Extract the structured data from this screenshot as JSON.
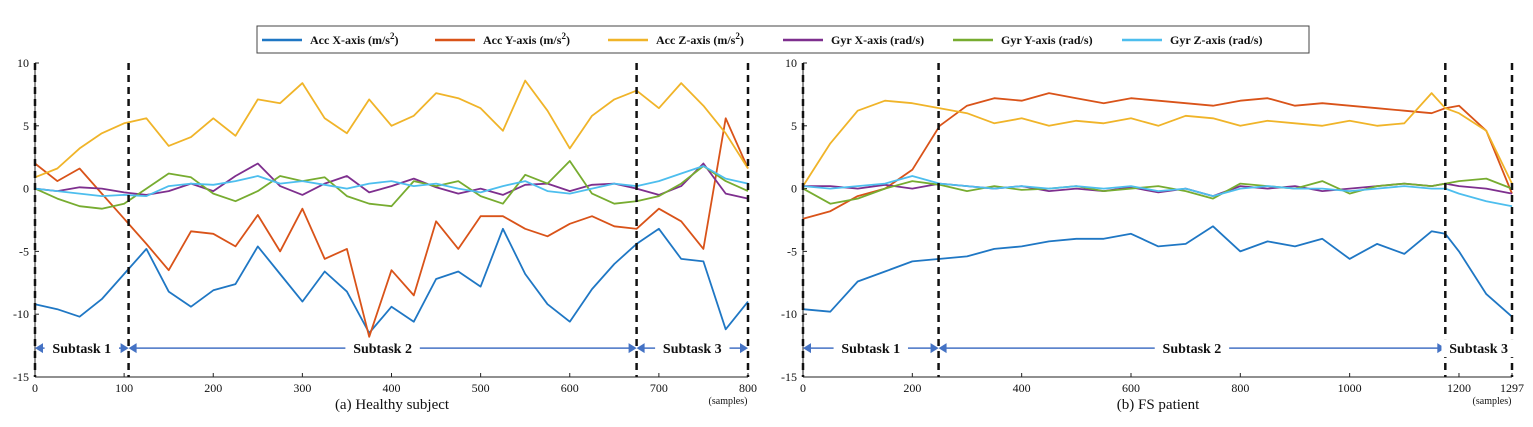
{
  "legend": [
    {
      "label": "Acc X-axis (m/s",
      "sup": "2",
      "close": ")",
      "color": "#1f77c4"
    },
    {
      "label": "Acc Y-axis (m/s",
      "sup": "2",
      "close": ")",
      "color": "#d95319"
    },
    {
      "label": "Acc Z-axis (m/s",
      "sup": "2",
      "close": ")",
      "color": "#f0b429"
    },
    {
      "label": "Gyr X-axis (rad/s)",
      "sup": "",
      "close": "",
      "color": "#7e2f8e"
    },
    {
      "label": "Gyr Y-axis (rad/s)",
      "sup": "",
      "close": "",
      "color": "#77ac30"
    },
    {
      "label": "Gyr Z-axis (rad/s)",
      "sup": "",
      "close": "",
      "color": "#4dbeee"
    }
  ],
  "chart_data": [
    {
      "type": "line",
      "caption": "(a) Healthy subject",
      "xlabel": "(samples)",
      "xlim": [
        0,
        800
      ],
      "ylim": [
        -15,
        10
      ],
      "xticks": [
        0,
        100,
        200,
        300,
        400,
        500,
        600,
        700,
        800
      ],
      "yticks": [
        10,
        5,
        0,
        -5,
        -10,
        -15
      ],
      "boundaries": [
        0,
        105,
        675,
        800
      ],
      "subtasks": [
        {
          "label": "Subtask 1",
          "from": 0,
          "to": 105
        },
        {
          "label": "Subtask 2",
          "from": 105,
          "to": 675
        },
        {
          "label": "Subtask 3",
          "from": 675,
          "to": 800
        }
      ],
      "series": [
        {
          "name": "Acc X-axis",
          "color": "#1f77c4",
          "x": [
            0,
            25,
            50,
            75,
            100,
            125,
            150,
            175,
            200,
            225,
            250,
            275,
            300,
            325,
            350,
            375,
            400,
            425,
            450,
            475,
            500,
            525,
            550,
            575,
            600,
            625,
            650,
            675,
            700,
            725,
            750,
            775,
            800
          ],
          "y": [
            -9.2,
            -9.6,
            -10.2,
            -8.8,
            -6.8,
            -4.8,
            -8.2,
            -9.4,
            -8.1,
            -7.6,
            -4.6,
            -6.8,
            -9.0,
            -6.6,
            -8.2,
            -11.5,
            -9.4,
            -10.6,
            -7.2,
            -6.6,
            -7.8,
            -3.2,
            -6.8,
            -9.2,
            -10.6,
            -8.0,
            -6.0,
            -4.4,
            -3.2,
            -5.6,
            -5.8,
            -11.2,
            -9.0
          ]
        },
        {
          "name": "Acc Y-axis",
          "color": "#d95319",
          "x": [
            0,
            25,
            50,
            75,
            100,
            125,
            150,
            175,
            200,
            225,
            250,
            275,
            300,
            325,
            350,
            375,
            400,
            425,
            450,
            475,
            500,
            525,
            550,
            575,
            600,
            625,
            650,
            675,
            700,
            725,
            750,
            775,
            800
          ],
          "y": [
            2.0,
            0.6,
            1.6,
            -0.4,
            -2.4,
            -4.4,
            -6.5,
            -3.4,
            -3.6,
            -4.6,
            -2.1,
            -5.0,
            -1.6,
            -5.6,
            -4.8,
            -11.8,
            -6.5,
            -8.5,
            -2.6,
            -4.8,
            -2.2,
            -2.2,
            -3.2,
            -3.8,
            -2.8,
            -2.2,
            -3.0,
            -3.2,
            -1.6,
            -2.6,
            -4.8,
            5.6,
            1.6
          ]
        },
        {
          "name": "Acc Z-axis",
          "color": "#f0b429",
          "x": [
            0,
            25,
            50,
            75,
            100,
            125,
            150,
            175,
            200,
            225,
            250,
            275,
            300,
            325,
            350,
            375,
            400,
            425,
            450,
            475,
            500,
            525,
            550,
            575,
            600,
            625,
            650,
            675,
            700,
            725,
            750,
            775,
            800
          ],
          "y": [
            0.9,
            1.6,
            3.2,
            4.4,
            5.2,
            5.6,
            3.4,
            4.1,
            5.6,
            4.2,
            7.1,
            6.8,
            8.4,
            5.6,
            4.4,
            7.1,
            5.0,
            5.8,
            7.6,
            7.2,
            6.4,
            4.6,
            8.6,
            6.2,
            3.2,
            5.8,
            7.1,
            7.8,
            6.4,
            8.4,
            6.6,
            4.4,
            1.6
          ]
        },
        {
          "name": "Gyr X-axis",
          "color": "#7e2f8e",
          "x": [
            0,
            25,
            50,
            75,
            100,
            125,
            150,
            175,
            200,
            225,
            250,
            275,
            300,
            325,
            350,
            375,
            400,
            425,
            450,
            475,
            500,
            525,
            550,
            575,
            600,
            625,
            650,
            675,
            700,
            725,
            750,
            775,
            800
          ],
          "y": [
            0.0,
            -0.2,
            0.1,
            0.0,
            -0.3,
            -0.5,
            -0.2,
            0.4,
            -0.2,
            1.0,
            2.0,
            0.2,
            -0.5,
            0.4,
            1.0,
            -0.3,
            0.2,
            0.8,
            0.1,
            -0.4,
            0.0,
            -0.5,
            0.3,
            0.4,
            -0.2,
            0.3,
            0.4,
            0.0,
            -0.5,
            0.2,
            2.0,
            -0.4,
            -0.8
          ]
        },
        {
          "name": "Gyr Y-axis",
          "color": "#77ac30",
          "x": [
            0,
            25,
            50,
            75,
            100,
            125,
            150,
            175,
            200,
            225,
            250,
            275,
            300,
            325,
            350,
            375,
            400,
            425,
            450,
            475,
            500,
            525,
            550,
            575,
            600,
            625,
            650,
            675,
            700,
            725,
            750,
            775,
            800
          ],
          "y": [
            0.0,
            -0.8,
            -1.4,
            -1.6,
            -1.2,
            0.0,
            1.2,
            0.9,
            -0.4,
            -1.0,
            -0.2,
            1.0,
            0.6,
            0.9,
            -0.6,
            -1.2,
            -1.4,
            0.6,
            0.2,
            0.6,
            -0.6,
            -1.2,
            1.1,
            0.4,
            2.2,
            -0.4,
            -1.2,
            -1.0,
            -0.6,
            0.4,
            1.8,
            0.6,
            -0.2
          ]
        },
        {
          "name": "Gyr Z-axis",
          "color": "#4dbeee",
          "x": [
            0,
            25,
            50,
            75,
            100,
            125,
            150,
            175,
            200,
            225,
            250,
            275,
            300,
            325,
            350,
            375,
            400,
            425,
            450,
            475,
            500,
            525,
            550,
            575,
            600,
            625,
            650,
            675,
            700,
            725,
            750,
            775,
            800
          ],
          "y": [
            0.0,
            -0.2,
            -0.4,
            -0.6,
            -0.5,
            -0.6,
            0.2,
            0.4,
            0.3,
            0.6,
            1.0,
            0.4,
            0.6,
            0.3,
            0.0,
            0.4,
            0.6,
            0.2,
            0.4,
            0.0,
            -0.3,
            0.2,
            0.6,
            -0.2,
            -0.4,
            0.0,
            0.4,
            0.2,
            0.6,
            1.2,
            1.8,
            0.8,
            0.4
          ]
        }
      ]
    },
    {
      "type": "line",
      "caption": "(b) FS patient",
      "xlabel": "(samples)",
      "xlim": [
        0,
        1297
      ],
      "ylim": [
        -15,
        10
      ],
      "xticks": [
        0,
        200,
        400,
        600,
        800,
        1000,
        1200,
        1297
      ],
      "yticks": [
        10,
        5,
        0,
        -5,
        -10,
        -15
      ],
      "boundaries": [
        0,
        248,
        1175,
        1297
      ],
      "subtasks": [
        {
          "label": "Subtask 1",
          "from": 0,
          "to": 248
        },
        {
          "label": "Subtask 2",
          "from": 248,
          "to": 1175
        },
        {
          "label": "Subtask 3",
          "from": 1175,
          "to": 1297
        }
      ],
      "series": [
        {
          "name": "Acc X-axis",
          "color": "#1f77c4",
          "x": [
            0,
            50,
            100,
            150,
            200,
            250,
            300,
            350,
            400,
            450,
            500,
            550,
            600,
            650,
            700,
            750,
            800,
            850,
            900,
            950,
            1000,
            1050,
            1100,
            1150,
            1175,
            1200,
            1250,
            1297
          ],
          "y": [
            -9.6,
            -9.8,
            -7.4,
            -6.6,
            -5.8,
            -5.6,
            -5.4,
            -4.8,
            -4.6,
            -4.2,
            -4.0,
            -4.0,
            -3.6,
            -4.6,
            -4.4,
            -3.0,
            -5.0,
            -4.2,
            -4.6,
            -4.0,
            -5.6,
            -4.4,
            -5.2,
            -3.4,
            -3.6,
            -5.0,
            -8.4,
            -10.2
          ]
        },
        {
          "name": "Acc Y-axis",
          "color": "#d95319",
          "x": [
            0,
            50,
            100,
            150,
            200,
            250,
            300,
            350,
            400,
            450,
            500,
            550,
            600,
            650,
            700,
            750,
            800,
            850,
            900,
            950,
            1000,
            1050,
            1100,
            1150,
            1175,
            1200,
            1250,
            1297
          ],
          "y": [
            -2.4,
            -1.8,
            -0.6,
            0.0,
            1.5,
            5.0,
            6.6,
            7.2,
            7.0,
            7.6,
            7.2,
            6.8,
            7.2,
            7.0,
            6.8,
            6.6,
            7.0,
            7.2,
            6.6,
            6.8,
            6.6,
            6.4,
            6.2,
            6.0,
            6.4,
            6.6,
            4.6,
            -0.4
          ]
        },
        {
          "name": "Acc Z-axis",
          "color": "#f0b429",
          "x": [
            0,
            50,
            100,
            150,
            200,
            250,
            300,
            350,
            400,
            450,
            500,
            550,
            600,
            650,
            700,
            750,
            800,
            850,
            900,
            950,
            1000,
            1050,
            1100,
            1150,
            1175,
            1200,
            1250,
            1297
          ],
          "y": [
            0.2,
            3.6,
            6.2,
            7.0,
            6.8,
            6.4,
            6.0,
            5.2,
            5.6,
            5.0,
            5.4,
            5.2,
            5.6,
            5.0,
            5.8,
            5.6,
            5.0,
            5.4,
            5.2,
            5.0,
            5.4,
            5.0,
            5.2,
            7.6,
            6.4,
            6.0,
            4.6,
            0.4
          ]
        },
        {
          "name": "Gyr X-axis",
          "color": "#7e2f8e",
          "x": [
            0,
            50,
            100,
            150,
            200,
            250,
            300,
            350,
            400,
            450,
            500,
            550,
            600,
            650,
            700,
            750,
            800,
            850,
            900,
            950,
            1000,
            1050,
            1100,
            1150,
            1175,
            1200,
            1250,
            1297
          ],
          "y": [
            0.2,
            0.2,
            0.0,
            0.3,
            0.0,
            0.4,
            0.2,
            0.0,
            0.2,
            -0.2,
            0.0,
            -0.2,
            0.1,
            -0.3,
            0.0,
            -0.6,
            0.2,
            0.0,
            0.2,
            -0.2,
            0.0,
            0.2,
            0.4,
            0.2,
            0.4,
            0.2,
            0.0,
            -0.4
          ]
        },
        {
          "name": "Gyr Y-axis",
          "color": "#77ac30",
          "x": [
            0,
            50,
            100,
            150,
            200,
            250,
            300,
            350,
            400,
            450,
            500,
            550,
            600,
            650,
            700,
            750,
            800,
            850,
            900,
            950,
            1000,
            1050,
            1100,
            1150,
            1175,
            1200,
            1250,
            1297
          ],
          "y": [
            0.0,
            -1.2,
            -0.8,
            0.0,
            0.6,
            0.3,
            -0.2,
            0.2,
            -0.1,
            0.0,
            0.2,
            -0.2,
            0.0,
            0.2,
            -0.2,
            -0.8,
            0.4,
            0.2,
            0.0,
            0.6,
            -0.4,
            0.2,
            0.4,
            0.2,
            0.4,
            0.6,
            0.8,
            0.0
          ]
        },
        {
          "name": "Gyr Z-axis",
          "color": "#4dbeee",
          "x": [
            0,
            50,
            100,
            150,
            200,
            250,
            300,
            350,
            400,
            450,
            500,
            550,
            600,
            650,
            700,
            750,
            800,
            850,
            900,
            950,
            1000,
            1050,
            1100,
            1150,
            1175,
            1200,
            1250,
            1297
          ],
          "y": [
            0.2,
            0.0,
            0.2,
            0.4,
            1.0,
            0.4,
            0.2,
            0.0,
            0.2,
            0.0,
            0.2,
            0.0,
            0.2,
            -0.2,
            0.0,
            -0.6,
            0.0,
            0.2,
            0.0,
            0.0,
            -0.2,
            0.0,
            0.2,
            0.0,
            0.0,
            -0.4,
            -1.0,
            -1.4
          ]
        }
      ]
    }
  ]
}
